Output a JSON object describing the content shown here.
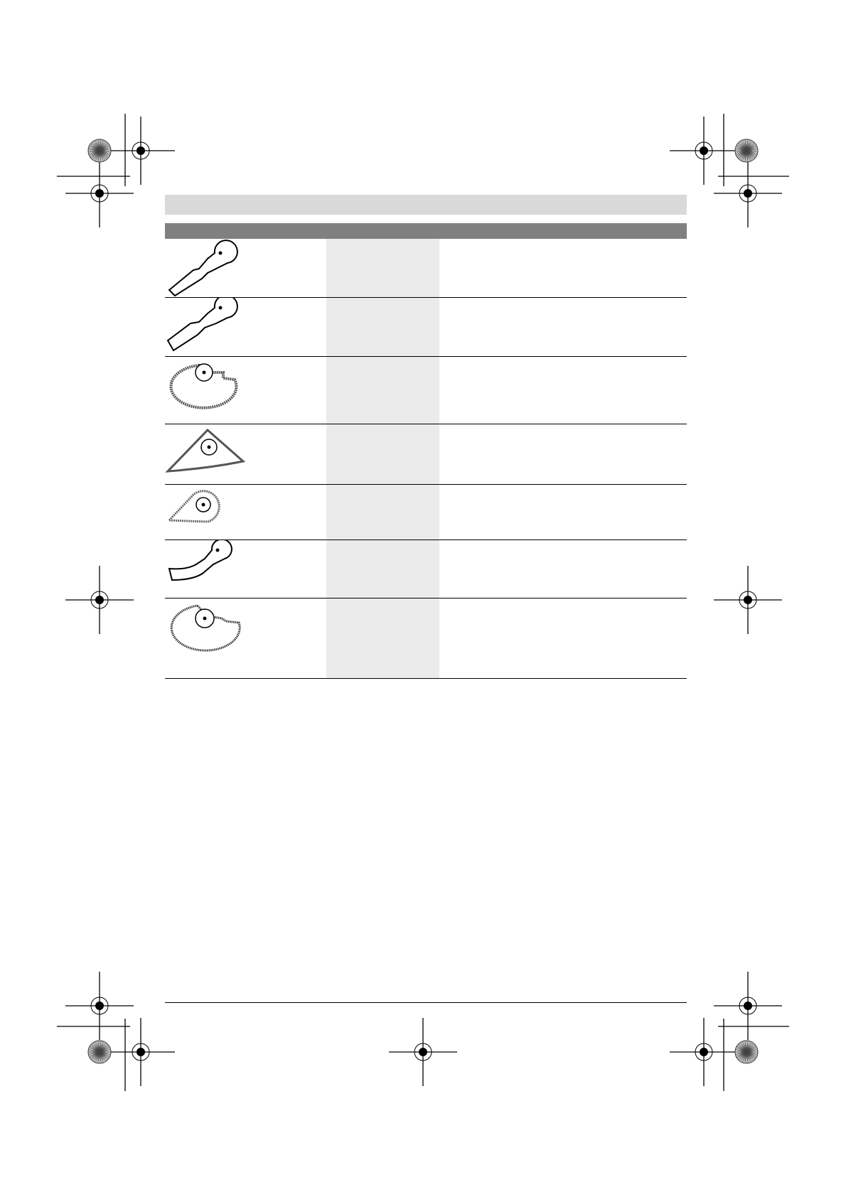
{
  "table": {
    "rows": [
      {
        "icon": "plunge-cut-blade-narrow-icon"
      },
      {
        "icon": "plunge-cut-blade-wide-icon"
      },
      {
        "icon": "segment-saw-blade-carbide-icon"
      },
      {
        "icon": "delta-sanding-plate-carbide-icon"
      },
      {
        "icon": "carbide-rasp-icon"
      },
      {
        "icon": "scraper-blade-icon"
      },
      {
        "icon": "segment-saw-blade-toothed-icon"
      }
    ]
  },
  "colors": {
    "header_light": "#d9d9d9",
    "header_dark": "#808080",
    "column_shade": "#ebebeb"
  }
}
